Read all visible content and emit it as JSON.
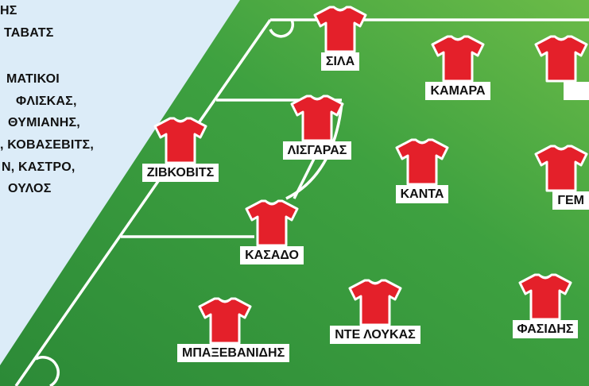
{
  "colors": {
    "background": "#dcecf8",
    "pitch_dark": "#2f8f3a",
    "pitch_light": "#63b545",
    "shirt": "#e4202a",
    "lines": "#ffffff"
  },
  "side_text": [
    "ΗΣ",
    "ΤΑΒΑΤΣ",
    "",
    "ΜΑΤΙΚΟΙ",
    "ΦΛΙΣΚΑΣ,",
    "ΘΥΜΙΑΝΗΣ,",
    ", ΚΟΒΑΣΕΒΙΤΣ,",
    "Ν, ΚΑΣΤΡΟ,",
    "ΟΥΛΟΣ"
  ],
  "players": [
    {
      "name": "ΣΙΛΑ"
    },
    {
      "name": "ΚΑΜΑΡΑ"
    },
    {
      "name": ""
    },
    {
      "name": "ΖΙΒΚΟΒΙΤΣ"
    },
    {
      "name": "ΛΙΣΓΑΡΑΣ"
    },
    {
      "name": "ΚΑΝΤΑ"
    },
    {
      "name": "ΓΕΜ"
    },
    {
      "name": "ΚΑΣΑΔΟ"
    },
    {
      "name": "ΜΠΑΞΕΒΑΝΙΔΗΣ"
    },
    {
      "name": "ΝΤΕ ΛΟΥΚΑΣ"
    },
    {
      "name": "ΦΑΣΙΔΗΣ"
    }
  ]
}
